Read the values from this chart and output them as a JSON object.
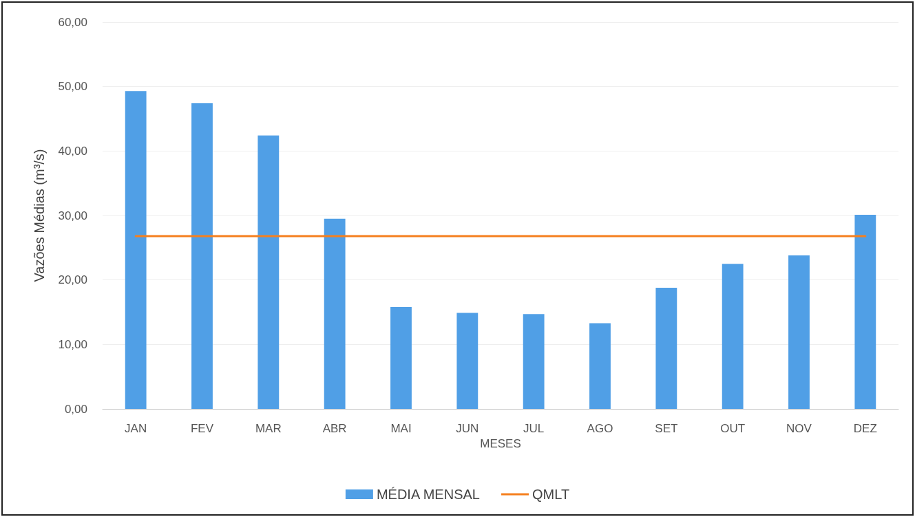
{
  "chart_data": {
    "type": "bar",
    "xlabel": "MESES",
    "ylabel": "Vazões Médias (m³/s)",
    "categories": [
      "JAN",
      "FEV",
      "MAR",
      "ABR",
      "MAI",
      "JUN",
      "JUL",
      "AGO",
      "SET",
      "OUT",
      "NOV",
      "DEZ"
    ],
    "series": [
      {
        "name": "MÉDIA MENSAL",
        "color": "#509fe6",
        "values": [
          49.3,
          47.4,
          42.4,
          29.5,
          15.8,
          14.9,
          14.7,
          13.3,
          18.8,
          22.5,
          23.8,
          30.1
        ]
      },
      {
        "name": "QMLT",
        "type": "line",
        "color": "#f5801f",
        "marker": "none",
        "values": [
          26.8,
          26.8,
          26.8,
          26.8,
          26.8,
          26.8,
          26.8,
          26.8,
          26.8,
          26.8,
          26.8,
          26.8
        ]
      }
    ],
    "ylim": [
      0,
      60
    ],
    "yticks": [
      {
        "value": 0,
        "label": "0,00"
      },
      {
        "value": 10,
        "label": "10,00"
      },
      {
        "value": 20,
        "label": "20,00"
      },
      {
        "value": 30,
        "label": "30,00"
      },
      {
        "value": 40,
        "label": "40,00"
      },
      {
        "value": 50,
        "label": "50,00"
      },
      {
        "value": 60,
        "label": "60,00"
      }
    ],
    "grid": "y",
    "legend": "bottom"
  }
}
